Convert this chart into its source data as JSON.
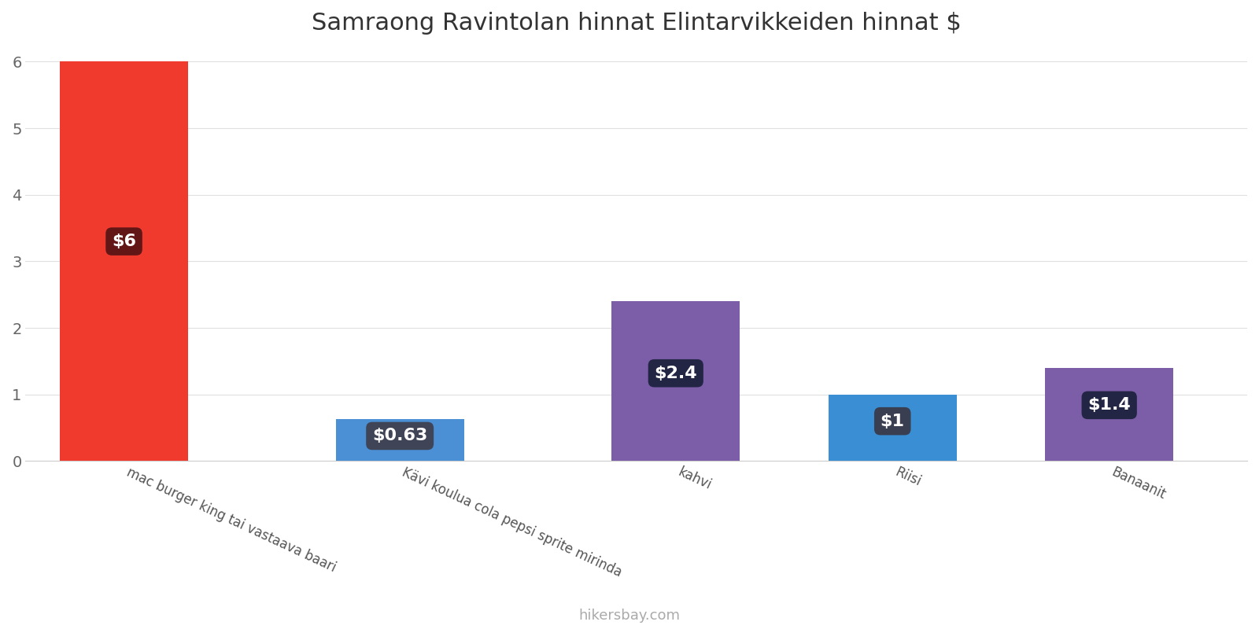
{
  "title": "Samraong Ravintolan hinnat Elintarvikkeiden hinnat $",
  "categories": [
    "mac burger king tai vastaava baari",
    "Kävi koulua cola pepsi sprite mirinda",
    "kahvi",
    "Riisi",
    "Banaanit"
  ],
  "values": [
    6.0,
    0.63,
    2.4,
    1.0,
    1.4
  ],
  "labels": [
    "$6",
    "$0.63",
    "$2.4",
    "$1",
    "$1.4"
  ],
  "bar_colors": [
    "#f03a2e",
    "#4b8fd4",
    "#7b5ea7",
    "#3a8fd4",
    "#7b5ea7"
  ],
  "label_bg_colors": [
    "#5a1515",
    "#404050",
    "#1e2240",
    "#3a3a4a",
    "#1e2240"
  ],
  "ylim": [
    0,
    6.15
  ],
  "yticks": [
    0,
    1,
    2,
    3,
    4,
    5,
    6
  ],
  "footer": "hikersbay.com",
  "bg_color": "#ffffff",
  "grid_color": "#e0e0e0",
  "title_fontsize": 22,
  "label_fontsize": 16,
  "tick_fontsize": 14,
  "footer_fontsize": 13,
  "bar_width": 0.65,
  "x_positions": [
    0,
    1.4,
    2.8,
    3.9,
    5.0
  ]
}
